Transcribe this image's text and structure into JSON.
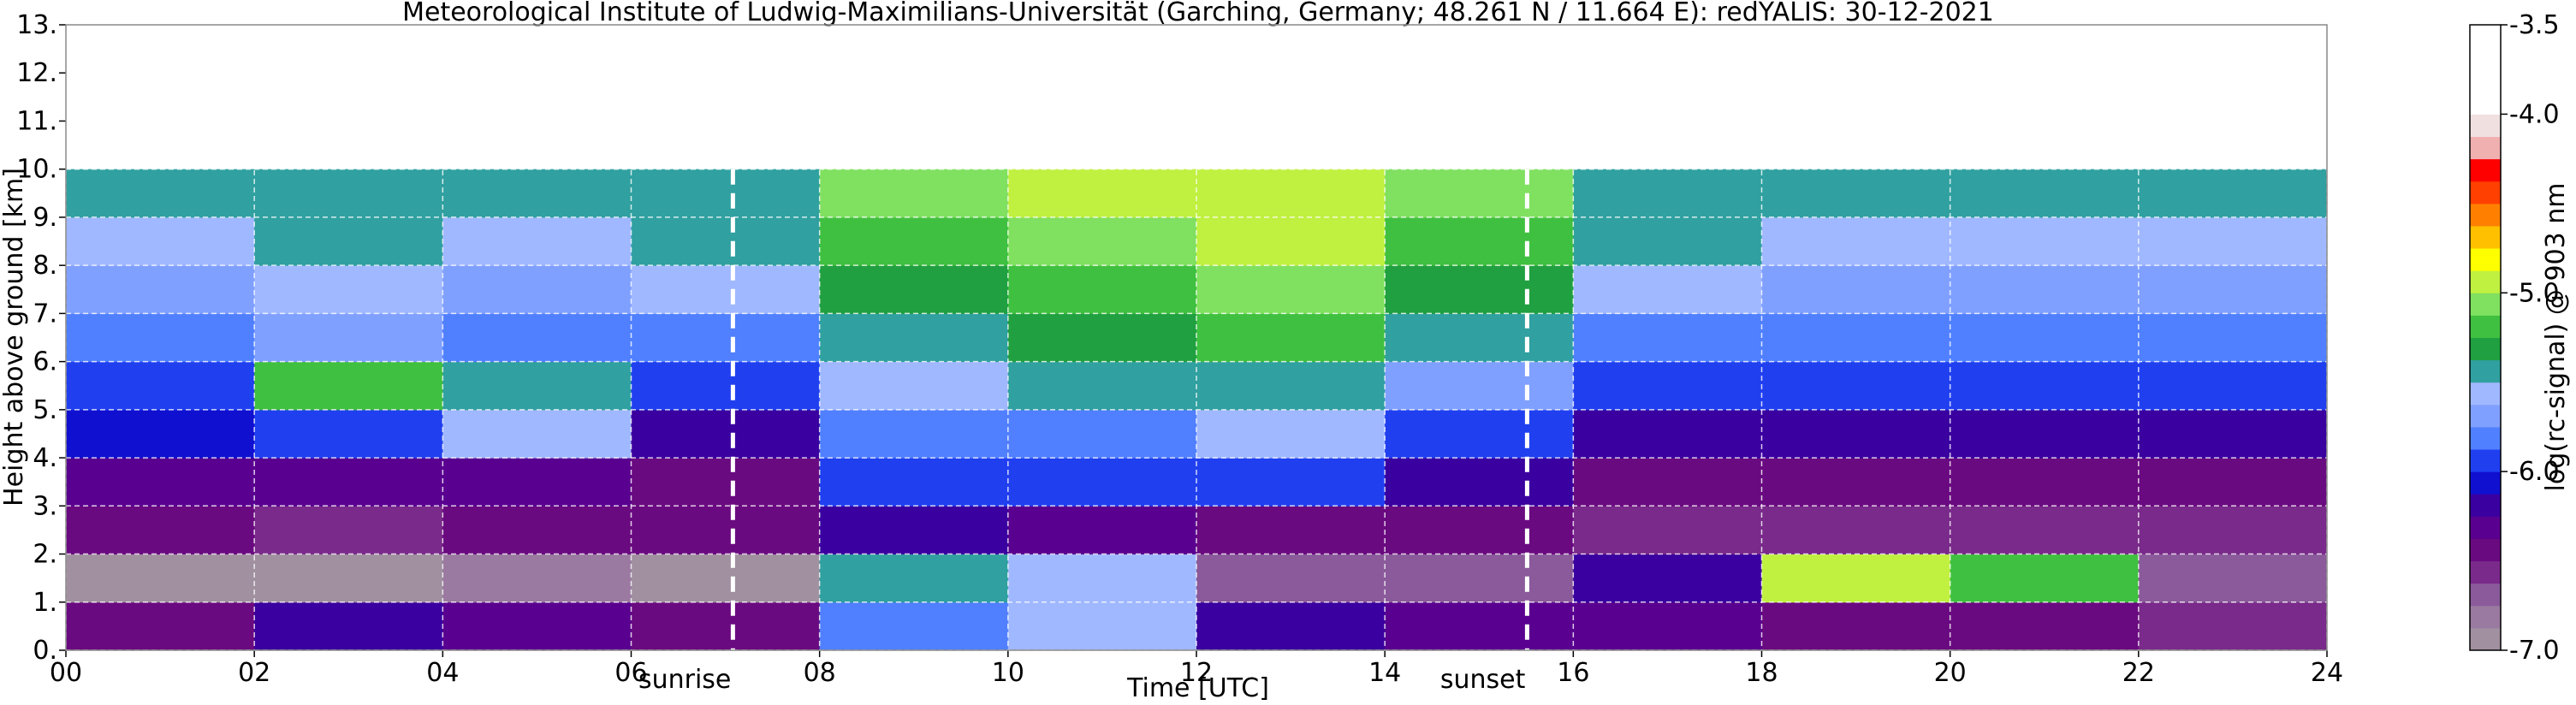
{
  "chart_data": {
    "type": "heatmap",
    "title": "Meteorological Institute of Ludwig-Maximilians-Universität (Garching, Germany; 48.261 N / 11.664 E):    redYALIS: 30-12-2021",
    "x_label": "Time [UTC]",
    "y_label": "Height above ground [km]",
    "colorbar_label": "log(rc-signal) @ 903 nm",
    "xlim": [
      0,
      24
    ],
    "xticks": [
      {
        "value": 0,
        "label": "00"
      },
      {
        "value": 2,
        "label": "02"
      },
      {
        "value": 4,
        "label": "04"
      },
      {
        "value": 6,
        "label": "06"
      },
      {
        "value": 8,
        "label": "08"
      },
      {
        "value": 10,
        "label": "10"
      },
      {
        "value": 12,
        "label": "12"
      },
      {
        "value": 14,
        "label": "14"
      },
      {
        "value": 16,
        "label": "16"
      },
      {
        "value": 18,
        "label": "18"
      },
      {
        "value": 20,
        "label": "20"
      },
      {
        "value": 22,
        "label": "22"
      },
      {
        "value": 24,
        "label": "24"
      }
    ],
    "ylim": [
      0,
      13
    ],
    "yticks": [
      {
        "value": 0,
        "label": "0."
      },
      {
        "value": 1,
        "label": "1."
      },
      {
        "value": 2,
        "label": "2."
      },
      {
        "value": 3,
        "label": "3."
      },
      {
        "value": 4,
        "label": "4."
      },
      {
        "value": 5,
        "label": "5."
      },
      {
        "value": 6,
        "label": "6."
      },
      {
        "value": 7,
        "label": "7."
      },
      {
        "value": 8,
        "label": "8."
      },
      {
        "value": 9,
        "label": "9."
      },
      {
        "value": 10,
        "label": "10."
      },
      {
        "value": 11,
        "label": "11."
      },
      {
        "value": 12,
        "label": "12."
      },
      {
        "value": 13,
        "label": "13."
      }
    ],
    "grid": true,
    "xbins": [
      0,
      2,
      4,
      6,
      8,
      10,
      12,
      14,
      16,
      18,
      20,
      22,
      24
    ],
    "ybins": [
      0,
      1,
      2,
      3,
      4,
      5,
      6,
      7,
      8,
      9,
      10
    ],
    "z": [
      [
        -6.4,
        -6.2,
        -6.3,
        -6.5,
        -5.8,
        -5.6,
        -6.2,
        -6.3,
        -6.3,
        -6.5,
        -6.5,
        -6.6
      ],
      [
        -6.9,
        -6.9,
        -6.8,
        -6.9,
        -5.4,
        -5.6,
        -6.7,
        -6.7,
        -6.2,
        -5.0,
        -5.2,
        -6.7
      ],
      [
        -6.5,
        -6.6,
        -6.5,
        -6.5,
        -6.2,
        -6.3,
        -6.4,
        -6.5,
        -6.6,
        -6.6,
        -6.6,
        -6.6
      ],
      [
        -6.3,
        -6.3,
        -6.3,
        -6.4,
        -6.0,
        -6.0,
        -5.9,
        -6.2,
        -6.4,
        -6.4,
        -6.4,
        -6.4
      ],
      [
        -6.1,
        -6.0,
        -5.6,
        -6.2,
        -5.8,
        -5.8,
        -5.6,
        -6.0,
        -6.2,
        -6.2,
        -6.2,
        -6.2
      ],
      [
        -5.9,
        -5.2,
        -5.4,
        -6.0,
        -5.6,
        -5.5,
        -5.4,
        -5.7,
        -6.0,
        -6.0,
        -6.0,
        -6.0
      ],
      [
        -5.8,
        -5.7,
        -5.8,
        -5.8,
        -5.4,
        -5.3,
        -5.2,
        -5.5,
        -5.8,
        -5.8,
        -5.8,
        -5.8
      ],
      [
        -5.7,
        -5.6,
        -5.7,
        -5.6,
        -5.3,
        -5.2,
        -5.1,
        -5.3,
        -5.6,
        -5.7,
        -5.7,
        -5.7
      ],
      [
        -5.6,
        -5.5,
        -5.6,
        -5.5,
        -5.2,
        -5.1,
        -5.0,
        -5.2,
        -5.5,
        -5.6,
        -5.6,
        -5.6
      ],
      [
        -5.5,
        -5.4,
        -5.5,
        -5.4,
        -5.1,
        -5.0,
        -4.9,
        -5.1,
        -5.4,
        -5.5,
        -5.5,
        -5.5
      ]
    ],
    "clim": [
      -7.0,
      -3.5
    ],
    "cticks": [
      {
        "value": -7.0,
        "label": "-7.0"
      },
      {
        "value": -6.0,
        "label": "-6.0"
      },
      {
        "value": -5.0,
        "label": "-5.0"
      },
      {
        "value": -4.0,
        "label": "-4.0"
      },
      -3.5
    ],
    "colorscale": [
      "#a090a0",
      "#9a7aa0",
      "#8a5a9a",
      "#7a2a8a",
      "#6a0a80",
      "#5a0090",
      "#3a00a0",
      "#1010d0",
      "#2040f0",
      "#5080ff",
      "#80a0ff",
      "#a0b8ff",
      "#30a0a0",
      "#20a040",
      "#40c040",
      "#80e060",
      "#c0f040",
      "#ffff00",
      "#ffc000",
      "#ff8000",
      "#ff4000",
      "#ff0000",
      "#f0b0b0",
      "#f0e0e0",
      "#ffffff",
      "#ffffff",
      "#ffffff",
      "#ffffff"
    ],
    "annotations": [
      {
        "label": "sunrise",
        "x": 7.08
      },
      {
        "label": "sunset",
        "x": 15.51
      }
    ]
  }
}
